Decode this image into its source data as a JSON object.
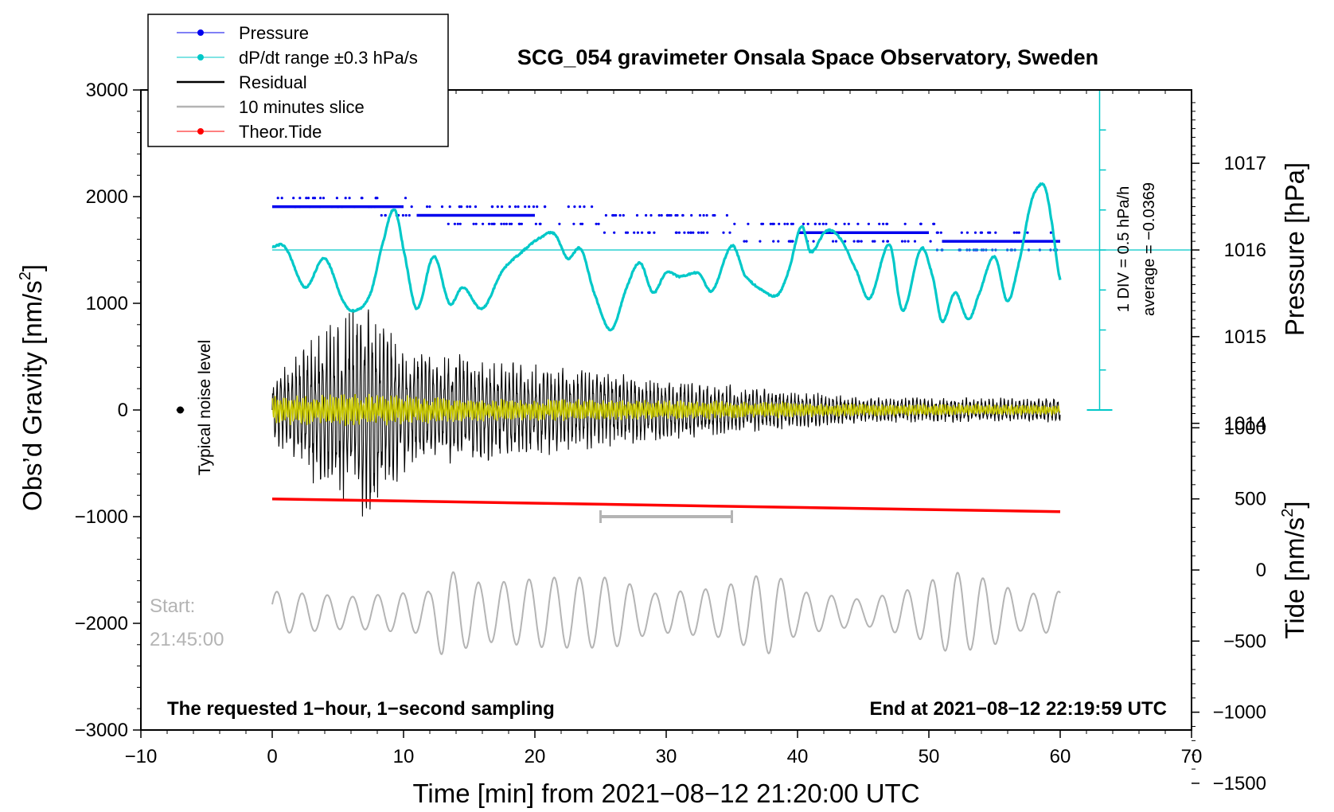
{
  "chart_data": {
    "type": "line",
    "title": "SCG_054 gravimeter Onsala Space Observatory, Sweden",
    "xlabel": "Time [min] from 2021−08−12 21:20:00 UTC",
    "ylabel": "Obs’d Gravity [nm/s",
    "ylabel_sup": "2",
    "ylabel_end": "]",
    "y2label": "Pressure [hPa]",
    "y3label": "Tide [nm/s",
    "y3label_sup": "2",
    "y3label_end": "]",
    "xlim": [
      -10,
      70
    ],
    "ylim": [
      -3000,
      3000
    ],
    "pressure_lim": [
      1013.0,
      1017.8
    ],
    "tide_lim": [
      -1500,
      1500
    ],
    "x_ticks": [
      -10,
      0,
      10,
      20,
      30,
      40,
      50,
      60,
      70
    ],
    "x_tick_labels": [
      "−10",
      "0",
      "10",
      "20",
      "30",
      "40",
      "50",
      "60",
      "70"
    ],
    "y_ticks": [
      -3000,
      -2000,
      -1000,
      0,
      1000,
      2000,
      3000
    ],
    "y_tick_labels": [
      "−3000",
      "−2000",
      "−1000",
      "0",
      "1000",
      "2000",
      "3000"
    ],
    "pressure_ticks": [
      1014,
      1015,
      1016,
      1017
    ],
    "pressure_tick_labels": [
      "1014",
      "1015",
      "1016",
      "1017"
    ],
    "tide_ticks": [
      -1500,
      -1000,
      -500,
      0,
      500,
      1000
    ],
    "tide_tick_labels": [
      "−1500",
      "−1000",
      "−500",
      "0",
      "500",
      "1000"
    ],
    "legend": [
      {
        "label": "Pressure",
        "color": "#0000ee",
        "marker": true
      },
      {
        "label": "dP/dt range ±0.3 hPa/s",
        "color": "#00c8c8",
        "marker": true
      },
      {
        "label": "Residual",
        "color": "#000000",
        "marker": false
      },
      {
        "label": "10 minutes slice",
        "color": "#b4b4b4",
        "marker": false
      },
      {
        "label": "Theor.Tide",
        "color": "#ff0000",
        "marker": true
      }
    ],
    "series": [
      {
        "name": "Pressure",
        "color": "#0000ee",
        "unit": "hPa",
        "x": [
          0,
          10,
          11,
          20,
          30,
          40,
          50,
          51,
          60
        ],
        "values": [
          1016.5,
          1016.5,
          1016.4,
          1016.4,
          1016.3,
          1016.2,
          1016.2,
          1016.1,
          1016.1
        ]
      },
      {
        "name": "dP/dt",
        "color": "#00c8c8",
        "unit": "nm/s2 plot scale",
        "x": [
          0,
          1,
          2.5,
          4,
          5.5,
          6.5,
          7.5,
          8.5,
          9.3,
          10,
          11,
          12.3,
          13.5,
          14.5,
          16,
          17.5,
          19,
          20.5,
          21.5,
          22.5,
          23.5,
          24.5,
          25.8,
          27,
          28,
          29,
          30,
          31,
          32.5,
          33.5,
          35,
          36,
          37.5,
          38.5,
          39.3,
          40.3,
          41,
          42.2,
          43.3,
          44.5,
          45.5,
          47,
          48,
          49.4,
          50.3,
          51,
          52,
          53,
          53.7,
          55,
          56,
          57,
          57.7,
          58.2,
          58.8,
          59.3,
          60
        ],
        "values": [
          1530,
          1520,
          1150,
          1420,
          1000,
          940,
          1100,
          1600,
          1880,
          1500,
          950,
          1440,
          1000,
          1150,
          950,
          1300,
          1480,
          1620,
          1650,
          1420,
          1510,
          1100,
          750,
          1150,
          1380,
          1100,
          1290,
          1250,
          1280,
          1120,
          1540,
          1260,
          1110,
          1080,
          1300,
          1720,
          1480,
          1680,
          1600,
          1300,
          1050,
          1550,
          930,
          1510,
          1250,
          830,
          1100,
          850,
          1050,
          1440,
          1020,
          1450,
          1900,
          2070,
          2100,
          1800,
          1220
        ]
      },
      {
        "name": "Residual",
        "color": "#000000",
        "unit": "nm/s2",
        "x": [
          0,
          3,
          7.5,
          10,
          20,
          30,
          40,
          45,
          60
        ],
        "amplitude": [
          300,
          700,
          1100,
          600,
          450,
          300,
          180,
          130,
          120
        ]
      },
      {
        "name": "Filtered residual",
        "color": "#c8c800",
        "unit": "nm/s2",
        "x": [
          0,
          7.5,
          15,
          30,
          45,
          60
        ],
        "amplitude": [
          140,
          160,
          110,
          100,
          60,
          50
        ]
      },
      {
        "name": "Theor.Tide",
        "color": "#ff0000",
        "unit": "nm/s2 (tide axis)",
        "x": [
          0,
          60
        ],
        "values": [
          500,
          410
        ]
      },
      {
        "name": "10 minutes slice",
        "color": "#b4b4b4",
        "unit": "nm/s2",
        "x": [
          0,
          6,
          12,
          13,
          16,
          21,
          26,
          29,
          34,
          36,
          38,
          40,
          42,
          45,
          49,
          51,
          52,
          55,
          57,
          60
        ],
        "amplitude": [
          200,
          150,
          200,
          420,
          270,
          330,
          330,
          180,
          230,
          310,
          390,
          200,
          170,
          120,
          230,
          350,
          380,
          300,
          170,
          200
        ],
        "center": -1900
      },
      {
        "name": "Slice marker",
        "color": "#b4b4b4",
        "x": [
          25,
          35
        ],
        "values": [
          -1000,
          -1000
        ]
      }
    ],
    "scale_bar": {
      "x": 63,
      "y_from": 0,
      "y_to": 3000,
      "label1": "1 DIV = 0.5 hPa/h",
      "label2": "average = −0.0369"
    },
    "mean_line_y": 1500,
    "noise_marker": {
      "x": -7,
      "y": 0,
      "label": "Typical noise level"
    },
    "annotations": {
      "start_line1": "Start:",
      "start_line2": "21:45:00",
      "bottom_left": "The requested 1−hour, 1−second sampling",
      "bottom_right": "End at 2021−08−12 22:19:59 UTC"
    }
  }
}
